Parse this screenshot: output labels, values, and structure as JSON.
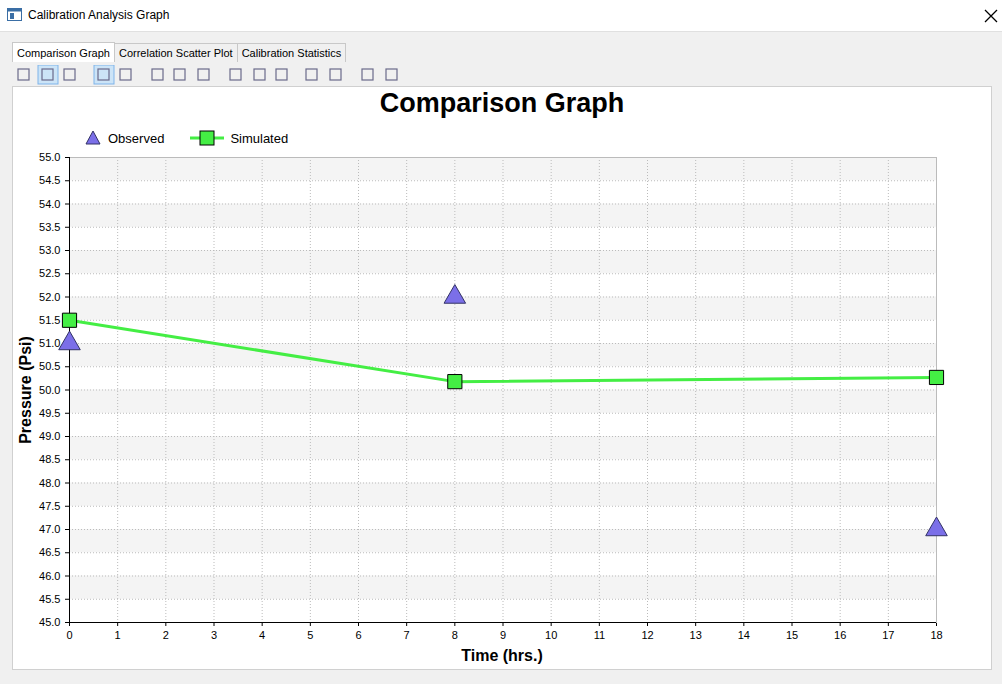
{
  "window": {
    "title": "Calibration Analysis Graph",
    "tabs": [
      "Comparison Graph",
      "Correlation Scatter Plot",
      "Calibration Statistics"
    ],
    "active_tab": "Comparison Graph"
  },
  "chart_data": {
    "type": "line",
    "title": "Comparison Graph",
    "x_label": "Time (hrs.)",
    "y_label": "Pressure (Psi)",
    "x": [
      0,
      8,
      18
    ],
    "series": [
      {
        "name": "Observed",
        "type": "scatter",
        "marker": "triangle",
        "color": "#7b6fe8",
        "values": [
          51.0,
          52.0,
          47.0
        ]
      },
      {
        "name": "Simulated",
        "type": "line",
        "marker": "square",
        "color": "#44ee44",
        "values": [
          51.5,
          50.18,
          50.27
        ]
      }
    ],
    "xlim": [
      0,
      18
    ],
    "xticks": [
      0,
      1,
      2,
      3,
      4,
      5,
      6,
      7,
      8,
      9,
      10,
      11,
      12,
      13,
      14,
      15,
      16,
      17,
      18
    ],
    "ylim": [
      45,
      55
    ],
    "yticks": [
      {
        "value": 45,
        "label": "45.0"
      },
      {
        "value": 45.5,
        "label": "45.5"
      },
      {
        "value": 46,
        "label": "46.0"
      },
      {
        "value": 46.5,
        "label": "46.5"
      },
      {
        "value": 47,
        "label": "47.0"
      },
      {
        "value": 47.5,
        "label": "47.5"
      },
      {
        "value": 48,
        "label": "48.0"
      },
      {
        "value": 48.5,
        "label": "48.5"
      },
      {
        "value": 49,
        "label": "49.0"
      },
      {
        "value": 49.5,
        "label": "49.5"
      },
      {
        "value": 50,
        "label": "50.0"
      },
      {
        "value": 50.5,
        "label": "50.5"
      },
      {
        "value": 51,
        "label": "51.0"
      },
      {
        "value": 51.5,
        "label": "51.5"
      },
      {
        "value": 52,
        "label": "52.0"
      },
      {
        "value": 52.5,
        "label": "52.5"
      },
      {
        "value": 53,
        "label": "53.0"
      },
      {
        "value": 53.5,
        "label": "53.5"
      },
      {
        "value": 54,
        "label": "54.0"
      },
      {
        "value": 54.5,
        "label": "54.5"
      },
      {
        "value": 55,
        "label": "55.0"
      }
    ],
    "grid": true,
    "legend": "top-left"
  }
}
